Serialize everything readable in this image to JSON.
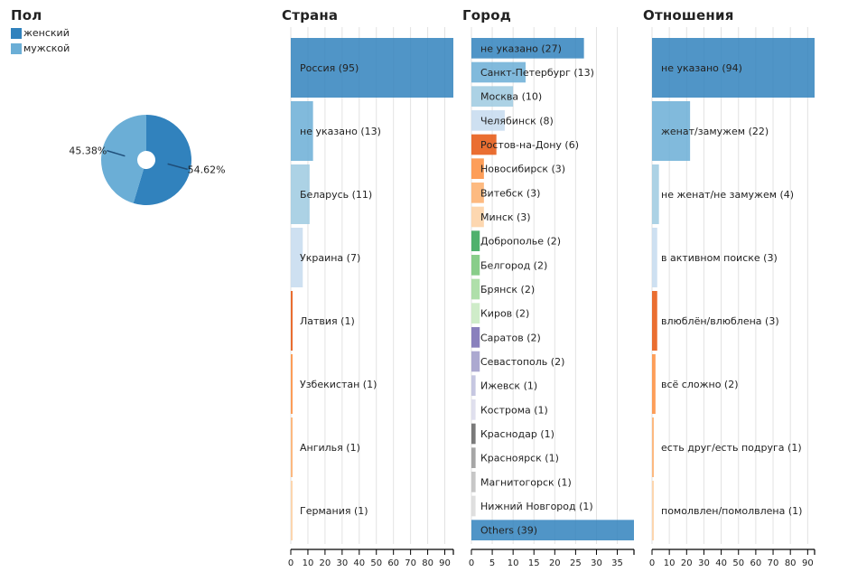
{
  "chart_data": [
    {
      "type": "pie",
      "title": "Пол",
      "legend": [
        {
          "label": "женский",
          "color": "#3182bd"
        },
        {
          "label": "мужской",
          "color": "#6baed6"
        }
      ],
      "slices": [
        {
          "label": "женский",
          "value": 54.62,
          "text": "54.62%",
          "color": "#3182bd"
        },
        {
          "label": "мужской",
          "value": 45.38,
          "text": "45.38%",
          "color": "#6baed6"
        }
      ]
    },
    {
      "type": "bar",
      "orientation": "horizontal",
      "title": "Страна",
      "xlim": [
        0,
        95
      ],
      "ticks": [
        0,
        10,
        20,
        30,
        40,
        50,
        60,
        70,
        80,
        90
      ],
      "grid": true,
      "bars": [
        {
          "label": "Россия (95)",
          "value": 95,
          "color": "#3182bd"
        },
        {
          "label": "не указано (13)",
          "value": 13,
          "color": "#6baed6"
        },
        {
          "label": "Беларусь (11)",
          "value": 11,
          "color": "#9ecae1"
        },
        {
          "label": "Украина (7)",
          "value": 7,
          "color": "#c6dbef"
        },
        {
          "label": "Латвия (1)",
          "value": 1,
          "color": "#e6550d"
        },
        {
          "label": "Узбекистан (1)",
          "value": 1,
          "color": "#fd8d3c"
        },
        {
          "label": "Ангилья (1)",
          "value": 1,
          "color": "#fdae6b"
        },
        {
          "label": "Германия (1)",
          "value": 1,
          "color": "#fdd0a2"
        }
      ]
    },
    {
      "type": "bar",
      "orientation": "horizontal",
      "title": "Город",
      "xlim": [
        0,
        39
      ],
      "ticks": [
        0,
        5,
        10,
        15,
        20,
        25,
        30,
        35
      ],
      "grid": true,
      "bars": [
        {
          "label": "не указано (27)",
          "value": 27,
          "color": "#3182bd"
        },
        {
          "label": "Санкт-Петербург (13)",
          "value": 13,
          "color": "#6baed6"
        },
        {
          "label": "Москва (10)",
          "value": 10,
          "color": "#9ecae1"
        },
        {
          "label": "Челябинск (8)",
          "value": 8,
          "color": "#c6dbef"
        },
        {
          "label": "Ростов-на-Дону (6)",
          "value": 6,
          "color": "#e6550d"
        },
        {
          "label": "Новосибирск (3)",
          "value": 3,
          "color": "#fd8d3c"
        },
        {
          "label": "Витебск (3)",
          "value": 3,
          "color": "#fdae6b"
        },
        {
          "label": "Минск (3)",
          "value": 3,
          "color": "#fdd0a2"
        },
        {
          "label": "Доброполье (2)",
          "value": 2,
          "color": "#31a354"
        },
        {
          "label": "Белгород (2)",
          "value": 2,
          "color": "#74c476"
        },
        {
          "label": "Брянск (2)",
          "value": 2,
          "color": "#a1d99b"
        },
        {
          "label": "Киров (2)",
          "value": 2,
          "color": "#c7e9c0"
        },
        {
          "label": "Саратов (2)",
          "value": 2,
          "color": "#756bb1"
        },
        {
          "label": "Севастополь (2)",
          "value": 2,
          "color": "#9e9ac8"
        },
        {
          "label": "Ижевск (1)",
          "value": 1,
          "color": "#bcbddc"
        },
        {
          "label": "Кострома (1)",
          "value": 1,
          "color": "#dadaeb"
        },
        {
          "label": "Краснодар (1)",
          "value": 1,
          "color": "#636363"
        },
        {
          "label": "Красноярск (1)",
          "value": 1,
          "color": "#969696"
        },
        {
          "label": "Магнитогорск (1)",
          "value": 1,
          "color": "#bdbdbd"
        },
        {
          "label": "Нижний Новгород (1)",
          "value": 1,
          "color": "#d9d9d9"
        },
        {
          "label": "Others (39)",
          "value": 39,
          "color": "#3182bd"
        }
      ]
    },
    {
      "type": "bar",
      "orientation": "horizontal",
      "title": "Отношения",
      "xlim": [
        0,
        94
      ],
      "ticks": [
        0,
        10,
        20,
        30,
        40,
        50,
        60,
        70,
        80,
        90
      ],
      "grid": true,
      "bars": [
        {
          "label": "не указано (94)",
          "value": 94,
          "color": "#3182bd"
        },
        {
          "label": "женат/замужем (22)",
          "value": 22,
          "color": "#6baed6"
        },
        {
          "label": "не женат/не замужем (4)",
          "value": 4,
          "color": "#9ecae1"
        },
        {
          "label": "в активном поиске (3)",
          "value": 3,
          "color": "#c6dbef"
        },
        {
          "label": "влюблён/влюблена (3)",
          "value": 3,
          "color": "#e6550d"
        },
        {
          "label": "всё сложно (2)",
          "value": 2,
          "color": "#fd8d3c"
        },
        {
          "label": "есть друг/есть подруга (1)",
          "value": 1,
          "color": "#fdae6b"
        },
        {
          "label": "помолвлен/помолвлена (1)",
          "value": 1,
          "color": "#fdd0a2"
        }
      ]
    }
  ]
}
